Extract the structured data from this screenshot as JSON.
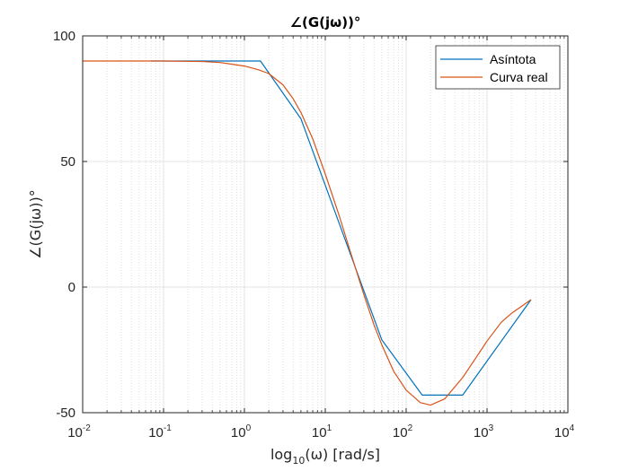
{
  "chart_data": {
    "type": "line",
    "title": "∠(G(jω))°",
    "xlabel": "log10(ω) [rad/s]",
    "ylabel": "∠(G(jω))°",
    "xscale": "log",
    "xlim": [
      0.01,
      10000
    ],
    "ylim": [
      -50,
      100
    ],
    "xticks": [
      0.01,
      0.1,
      1,
      10,
      100,
      1000,
      10000
    ],
    "xtick_labels": [
      {
        "base": "10",
        "exp": "-2"
      },
      {
        "base": "10",
        "exp": "-1"
      },
      {
        "base": "10",
        "exp": "0"
      },
      {
        "base": "10",
        "exp": "1"
      },
      {
        "base": "10",
        "exp": "2"
      },
      {
        "base": "10",
        "exp": "3"
      },
      {
        "base": "10",
        "exp": "4"
      }
    ],
    "yticks": [
      -50,
      0,
      50,
      100
    ],
    "ytick_labels": [
      "-50",
      "0",
      "50",
      "100"
    ],
    "grid": true,
    "minor_grid": true,
    "legend": "top-right",
    "series": [
      {
        "name": "Asíntota",
        "color": "#0072BD",
        "x": [
          0.07,
          1.58,
          5.0,
          50,
          158,
          500,
          3500
        ],
        "y": [
          90,
          90,
          67,
          -21,
          -43,
          -43,
          -5
        ]
      },
      {
        "name": "Curva real",
        "color": "#D95319",
        "x": [
          0.01,
          0.1,
          0.3,
          0.5,
          1,
          1.5,
          2,
          3,
          4,
          5,
          7,
          10,
          15,
          20,
          30,
          40,
          50,
          70,
          100,
          150,
          200,
          300,
          500,
          700,
          1000,
          1500,
          2000,
          3500
        ],
        "y": [
          90,
          90,
          89.8,
          89.4,
          88,
          86.5,
          85,
          80.5,
          75,
          69.5,
          59,
          45,
          28,
          15,
          -3,
          -15,
          -23,
          -33.5,
          -41,
          -46,
          -47,
          -44.5,
          -36,
          -29,
          -21.5,
          -14,
          -10.5,
          -5
        ]
      }
    ]
  }
}
